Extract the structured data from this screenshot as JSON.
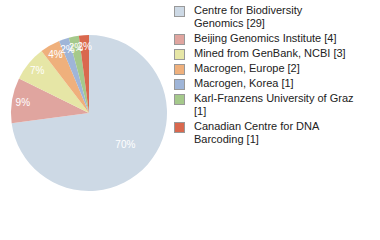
{
  "chart_data": {
    "type": "pie",
    "categories": [
      "Centre for Biodiversity Genomics [29]",
      "Beijing Genomics Institute [4]",
      "Mined from GenBank, NCBI [3]",
      "Macrogen, Europe [2]",
      "Macrogen, Korea [1]",
      "Karl-Franzens University of Graz [1]",
      "Canadian Centre for DNA Barcoding [1]"
    ],
    "values": [
      70,
      9,
      7,
      4,
      2,
      2,
      2
    ],
    "value_labels": [
      "70%",
      "9%",
      "7%",
      "4%",
      "2%",
      "2%",
      "2%"
    ],
    "colors": [
      "#cdd9e5",
      "#e0a59f",
      "#e6e6a6",
      "#efb07c",
      "#9fb5d8",
      "#a5c98b",
      "#d9684e"
    ],
    "data_labels": true,
    "legend": "right"
  }
}
